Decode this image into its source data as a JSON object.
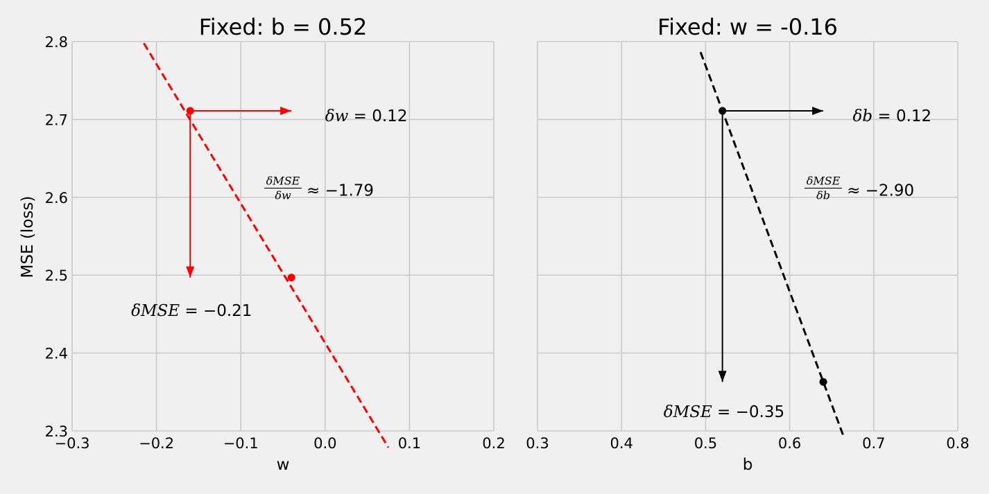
{
  "chart_data": [
    {
      "type": "line",
      "title": "Fixed: b = 0.52",
      "xlabel": "w",
      "ylabel": "MSE (loss)",
      "xlim": [
        -0.3,
        0.2
      ],
      "ylim": [
        2.3,
        2.8
      ],
      "xticks": [
        "−0.3",
        "−0.2",
        "−0.1",
        "0.0",
        "0.1",
        "0.2"
      ],
      "yticks": [
        "2.3",
        "2.4",
        "2.5",
        "2.6",
        "2.7",
        "2.8"
      ],
      "grid": true,
      "color": "#ff0000",
      "line": {
        "style": "dashed",
        "slope": -1.79,
        "x": [
          -0.215,
          0.075
        ],
        "y": [
          2.7979,
          2.2787
        ]
      },
      "points": [
        {
          "x": -0.16,
          "y": 2.711
        },
        {
          "x": -0.04,
          "y": 2.497
        }
      ],
      "arrows": [
        {
          "from": [
            -0.16,
            2.711
          ],
          "to": [
            -0.04,
            2.711
          ]
        },
        {
          "from": [
            -0.16,
            2.711
          ],
          "to": [
            -0.16,
            2.497
          ]
        }
      ],
      "annotations": {
        "delta_param": {
          "symbol": "δw",
          "eq": " = 0.12",
          "x": 0.0,
          "y": 2.705
        },
        "delta_mse": {
          "symbol": "δMSE",
          "eq": " = −0.21",
          "x": -0.23,
          "y": 2.455
        },
        "gradient": {
          "num": "δMSE",
          "den": "δw",
          "approx": "≈ −1.79",
          "x": -0.05,
          "y": 2.61
        }
      }
    },
    {
      "type": "line",
      "title": "Fixed: w = -0.16",
      "xlabel": "b",
      "xlim": [
        0.3,
        0.8
      ],
      "ylim": [
        2.3,
        2.8
      ],
      "xticks": [
        "0.3",
        "0.4",
        "0.5",
        "0.6",
        "0.7",
        "0.8"
      ],
      "grid": true,
      "color": "#000000",
      "line": {
        "style": "dashed",
        "slope": -2.9,
        "x": [
          0.494,
          0.664
        ],
        "y": [
          2.7864,
          2.2934
        ]
      },
      "points": [
        {
          "x": 0.52,
          "y": 2.711
        },
        {
          "x": 0.64,
          "y": 2.363
        }
      ],
      "arrows": [
        {
          "from": [
            0.52,
            2.711
          ],
          "to": [
            0.64,
            2.711
          ]
        },
        {
          "from": [
            0.52,
            2.711
          ],
          "to": [
            0.52,
            2.363
          ]
        }
      ],
      "annotations": {
        "delta_param": {
          "symbol": "δb",
          "eq": " = 0.12",
          "x": 0.675,
          "y": 2.705
        },
        "delta_mse": {
          "symbol": "δMSE",
          "eq": " = −0.35",
          "x": 0.45,
          "y": 2.325
        },
        "gradient": {
          "num": "δMSE",
          "den": "δb",
          "approx": "≈ −2.90",
          "x": 0.64,
          "y": 2.61
        }
      }
    }
  ]
}
